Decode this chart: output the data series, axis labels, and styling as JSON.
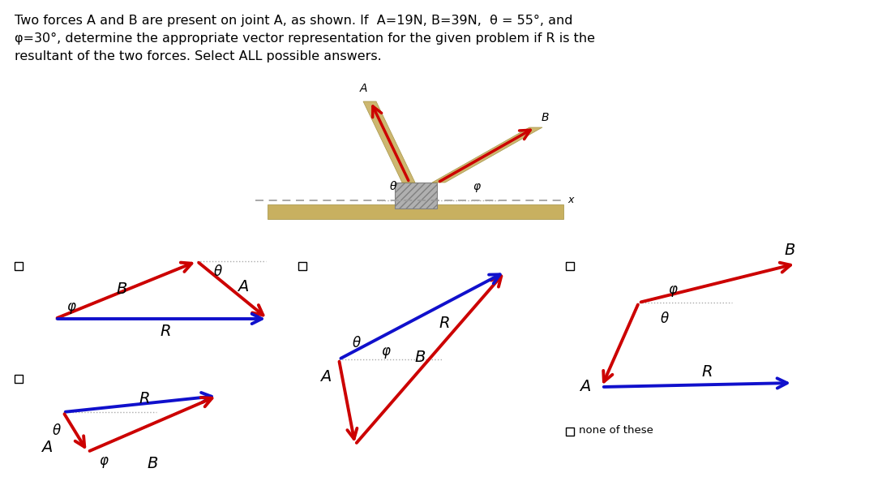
{
  "red": "#cc0000",
  "blue": "#1010cc",
  "tan_beam": "#c8b060",
  "tan_edge": "#a09040",
  "block_face": "#b0b0b0",
  "block_edge": "#808080",
  "dot_color": "#aaaaaa",
  "dash_color": "#999999",
  "black": "#000000",
  "white": "#ffffff",
  "title_lines": [
    "Two forces A and B are present on joint A, as shown. If  A=19N, B=39N,  θ = 55°, and",
    "φ=30°, determine the appropriate vector representation for the given problem if R is the",
    "resultant of the two forces. Select ALL possible answers."
  ],
  "none_text": "none of these"
}
